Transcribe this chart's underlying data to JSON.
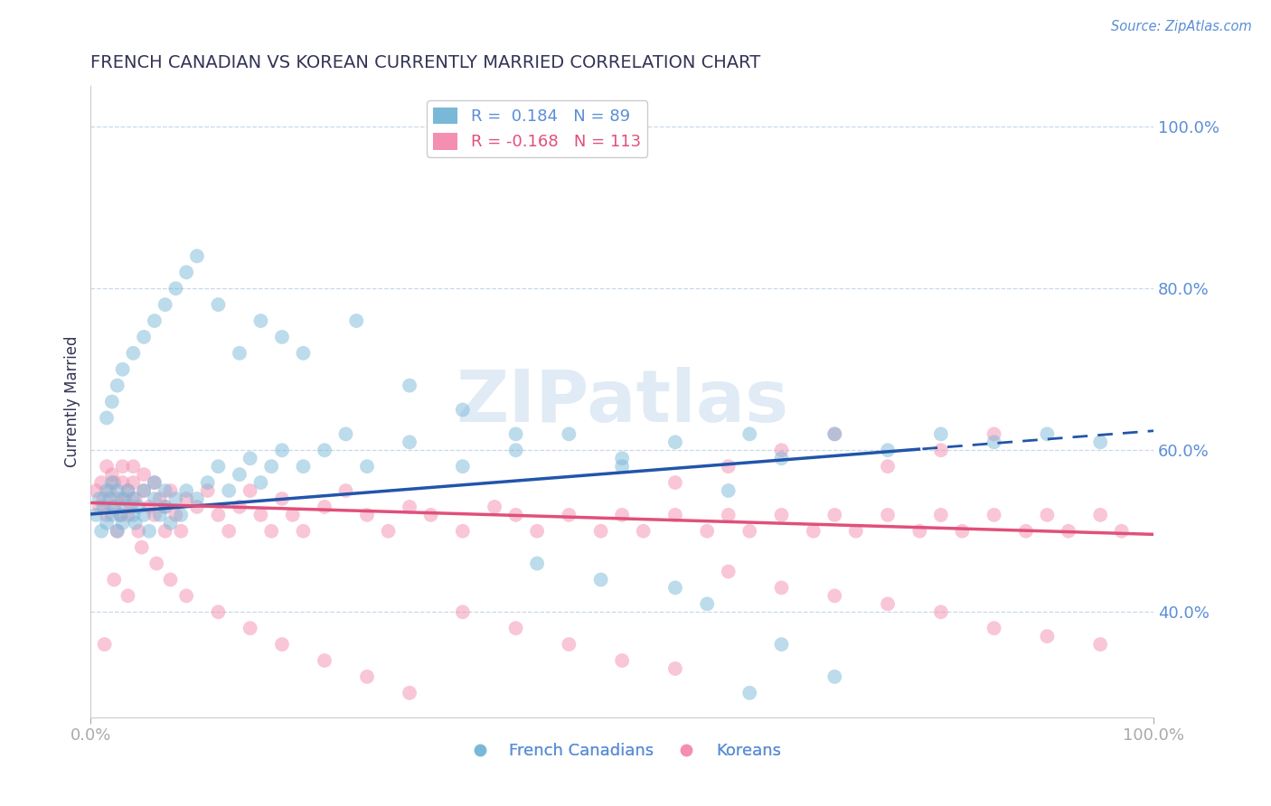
{
  "title": "FRENCH CANADIAN VS KOREAN CURRENTLY MARRIED CORRELATION CHART",
  "source": "Source: ZipAtlas.com",
  "ylabel": "Currently Married",
  "y_tick_labels": [
    "40.0%",
    "60.0%",
    "80.0%",
    "100.0%"
  ],
  "y_tick_values": [
    0.4,
    0.6,
    0.8,
    1.0
  ],
  "xlim": [
    0.0,
    1.0
  ],
  "ylim": [
    0.27,
    1.05
  ],
  "title_color": "#333355",
  "axis_label_color": "#333355",
  "tick_label_color": "#5b8ed6",
  "source_color": "#5b8ed6",
  "blue_scatter_color": "#7ab8d8",
  "pink_scatter_color": "#f48fb1",
  "blue_line_color": "#2255aa",
  "pink_line_color": "#e0507a",
  "watermark_color": "#c5d8ee",
  "blue_line_start_y": 0.521,
  "blue_line_end_y": 0.624,
  "blue_line_solid_end_x": 0.78,
  "pink_line_start_y": 0.535,
  "pink_line_end_y": 0.496,
  "french_canadian_x": [
    0.005,
    0.008,
    0.01,
    0.012,
    0.015,
    0.015,
    0.018,
    0.02,
    0.02,
    0.022,
    0.025,
    0.025,
    0.028,
    0.03,
    0.03,
    0.032,
    0.035,
    0.04,
    0.04,
    0.042,
    0.045,
    0.05,
    0.05,
    0.055,
    0.06,
    0.06,
    0.065,
    0.07,
    0.07,
    0.075,
    0.08,
    0.085,
    0.09,
    0.1,
    0.11,
    0.12,
    0.13,
    0.14,
    0.15,
    0.16,
    0.17,
    0.18,
    0.2,
    0.22,
    0.24,
    0.26,
    0.3,
    0.35,
    0.4,
    0.45,
    0.5,
    0.55,
    0.62,
    0.65,
    0.7,
    0.75,
    0.8,
    0.85,
    0.9,
    0.95,
    0.015,
    0.02,
    0.025,
    0.03,
    0.04,
    0.05,
    0.06,
    0.07,
    0.08,
    0.09,
    0.1,
    0.12,
    0.14,
    0.16,
    0.18,
    0.2,
    0.25,
    0.3,
    0.35,
    0.4,
    0.5,
    0.6,
    0.65,
    0.7,
    0.42,
    0.48,
    0.55,
    0.58,
    0.62
  ],
  "french_canadian_y": [
    0.52,
    0.54,
    0.5,
    0.53,
    0.55,
    0.51,
    0.54,
    0.52,
    0.56,
    0.53,
    0.55,
    0.5,
    0.52,
    0.54,
    0.51,
    0.53,
    0.55,
    0.52,
    0.54,
    0.51,
    0.53,
    0.55,
    0.52,
    0.5,
    0.54,
    0.56,
    0.52,
    0.55,
    0.53,
    0.51,
    0.54,
    0.52,
    0.55,
    0.54,
    0.56,
    0.58,
    0.55,
    0.57,
    0.59,
    0.56,
    0.58,
    0.6,
    0.58,
    0.6,
    0.62,
    0.58,
    0.61,
    0.58,
    0.6,
    0.62,
    0.59,
    0.61,
    0.62,
    0.59,
    0.62,
    0.6,
    0.62,
    0.61,
    0.62,
    0.61,
    0.64,
    0.66,
    0.68,
    0.7,
    0.72,
    0.74,
    0.76,
    0.78,
    0.8,
    0.82,
    0.84,
    0.78,
    0.72,
    0.76,
    0.74,
    0.72,
    0.76,
    0.68,
    0.65,
    0.62,
    0.58,
    0.55,
    0.36,
    0.32,
    0.46,
    0.44,
    0.43,
    0.41,
    0.3
  ],
  "korean_x": [
    0.005,
    0.008,
    0.01,
    0.012,
    0.015,
    0.015,
    0.018,
    0.02,
    0.02,
    0.022,
    0.025,
    0.025,
    0.028,
    0.03,
    0.03,
    0.032,
    0.035,
    0.035,
    0.038,
    0.04,
    0.04,
    0.042,
    0.045,
    0.05,
    0.05,
    0.055,
    0.06,
    0.06,
    0.065,
    0.07,
    0.07,
    0.075,
    0.08,
    0.085,
    0.09,
    0.1,
    0.11,
    0.12,
    0.13,
    0.14,
    0.15,
    0.16,
    0.17,
    0.18,
    0.19,
    0.2,
    0.22,
    0.24,
    0.26,
    0.28,
    0.3,
    0.32,
    0.35,
    0.38,
    0.4,
    0.42,
    0.45,
    0.48,
    0.5,
    0.52,
    0.55,
    0.58,
    0.6,
    0.62,
    0.65,
    0.68,
    0.7,
    0.72,
    0.75,
    0.78,
    0.8,
    0.82,
    0.85,
    0.88,
    0.9,
    0.92,
    0.95,
    0.97,
    0.013,
    0.022,
    0.035,
    0.048,
    0.062,
    0.075,
    0.09,
    0.12,
    0.15,
    0.18,
    0.22,
    0.26,
    0.3,
    0.35,
    0.4,
    0.45,
    0.5,
    0.55,
    0.6,
    0.65,
    0.7,
    0.75,
    0.8,
    0.85,
    0.9,
    0.95,
    0.55,
    0.6,
    0.65,
    0.7,
    0.75,
    0.8,
    0.85
  ],
  "korean_y": [
    0.55,
    0.53,
    0.56,
    0.54,
    0.52,
    0.58,
    0.55,
    0.57,
    0.53,
    0.56,
    0.54,
    0.5,
    0.52,
    0.56,
    0.58,
    0.54,
    0.55,
    0.52,
    0.53,
    0.56,
    0.58,
    0.54,
    0.5,
    0.55,
    0.57,
    0.53,
    0.52,
    0.56,
    0.54,
    0.5,
    0.53,
    0.55,
    0.52,
    0.5,
    0.54,
    0.53,
    0.55,
    0.52,
    0.5,
    0.53,
    0.55,
    0.52,
    0.5,
    0.54,
    0.52,
    0.5,
    0.53,
    0.55,
    0.52,
    0.5,
    0.53,
    0.52,
    0.5,
    0.53,
    0.52,
    0.5,
    0.52,
    0.5,
    0.52,
    0.5,
    0.52,
    0.5,
    0.52,
    0.5,
    0.52,
    0.5,
    0.52,
    0.5,
    0.52,
    0.5,
    0.52,
    0.5,
    0.52,
    0.5,
    0.52,
    0.5,
    0.52,
    0.5,
    0.36,
    0.44,
    0.42,
    0.48,
    0.46,
    0.44,
    0.42,
    0.4,
    0.38,
    0.36,
    0.34,
    0.32,
    0.3,
    0.4,
    0.38,
    0.36,
    0.34,
    0.33,
    0.45,
    0.43,
    0.42,
    0.41,
    0.4,
    0.38,
    0.37,
    0.36,
    0.56,
    0.58,
    0.6,
    0.62,
    0.58,
    0.6,
    0.62
  ]
}
